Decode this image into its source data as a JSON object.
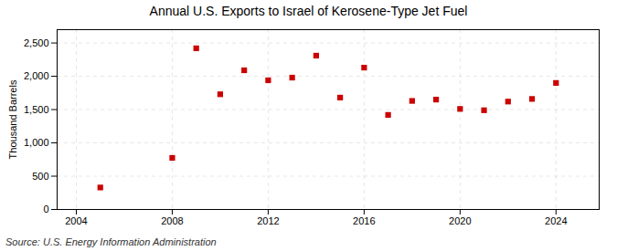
{
  "chart_data": {
    "type": "scatter",
    "title": "Annual U.S. Exports to Israel of Kerosene-Type Jet Fuel",
    "ylabel": "Thousand Barrels",
    "source": "Source: U.S. Energy Information Administration",
    "x": [
      2005,
      2008,
      2009,
      2010,
      2011,
      2012,
      2013,
      2014,
      2015,
      2016,
      2017,
      2018,
      2019,
      2020,
      2021,
      2022,
      2023,
      2024
    ],
    "values": [
      330,
      775,
      2420,
      1730,
      2090,
      1940,
      1980,
      2310,
      1680,
      2130,
      1420,
      1630,
      1650,
      1510,
      1490,
      1620,
      1660,
      1900
    ],
    "color": "#cc0000",
    "marker": "square",
    "xlim": [
      2003.2,
      2025.8
    ],
    "xticks": [
      2004,
      2008,
      2012,
      2016,
      2020,
      2024
    ],
    "ylim": [
      0,
      2700
    ],
    "yticks": [
      0,
      500,
      {
        "value": 1000,
        "label": "1,000"
      },
      {
        "value": 1500,
        "label": "1,500"
      },
      {
        "value": 2000,
        "label": "2,000"
      },
      {
        "value": 2500,
        "label": "2,500"
      }
    ],
    "grid": true
  }
}
